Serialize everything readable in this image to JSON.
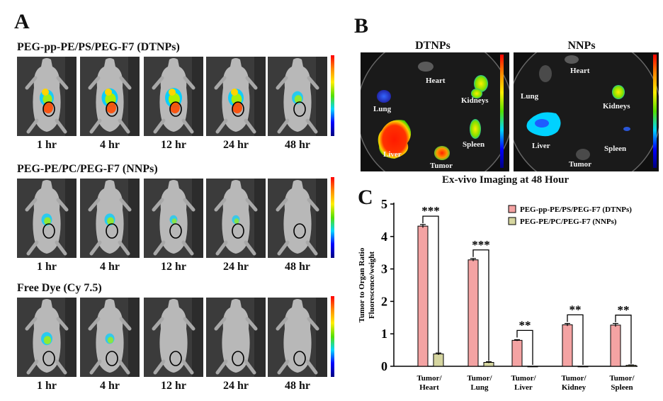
{
  "panel_a": {
    "letter": "A",
    "rows": [
      {
        "title": "PEG-pp-PE/PS/PEG-F7 (DTNPs)",
        "times": [
          "1 hr",
          "4 hr",
          "12 hr",
          "24 hr",
          "48 hr"
        ],
        "signal": [
          0.8,
          0.95,
          1.0,
          0.9,
          0.6
        ]
      },
      {
        "title": "PEG-PE/PC/PEG-F7 (NNPs)",
        "times": [
          "1 hr",
          "4 hr",
          "12 hr",
          "24 hr",
          "48 hr"
        ],
        "signal": [
          0.55,
          0.55,
          0.35,
          0.35,
          0.0
        ]
      },
      {
        "title": "Free Dye (Cy 7.5)",
        "times": [
          "1 hr",
          "4 hr",
          "12 hr",
          "24 hr",
          "48 hr"
        ],
        "signal": [
          0.6,
          0.45,
          0.0,
          0.0,
          0.0
        ]
      }
    ]
  },
  "panel_b": {
    "letter": "B",
    "dtnps": {
      "title": "DTNPs",
      "labels": {
        "heart": "Heart",
        "lung": "Lung",
        "kidneys": "Kidneys",
        "liver": "Liver",
        "spleen": "Spleen",
        "tumor": "Tumor"
      }
    },
    "nnps": {
      "title": "NNPs",
      "labels": {
        "heart": "Heart",
        "lung": "Lung",
        "kidneys": "Kidneys",
        "liver": "Liver",
        "spleen": "Spleen",
        "tumor": "Tumor"
      }
    },
    "caption": "Ex-vivo Imaging at 48 Hour"
  },
  "chart_data": {
    "type": "bar",
    "letter": "C",
    "ylabel_line1": "Tumor to Organ Ratio",
    "ylabel_line2": "Fluorescence/weight",
    "categories": [
      [
        "Tumor/",
        "Heart"
      ],
      [
        "Tumor/",
        "Lung"
      ],
      [
        "Tumor/",
        "Liver"
      ],
      [
        "Tumor/",
        "Kidney"
      ],
      [
        "Tumor/",
        "Spleen"
      ]
    ],
    "series": [
      {
        "name": "PEG-pp-PE/PS/PEG-F7 (DTNPs)",
        "color": "#f4a3a3",
        "values": [
          4.32,
          3.28,
          0.8,
          1.28,
          1.27
        ],
        "errors": [
          0.05,
          0.04,
          0.02,
          0.04,
          0.05
        ]
      },
      {
        "name": "PEG-PE/PC/PEG-F7 (NNPs)",
        "color": "#d6d6a0",
        "values": [
          0.38,
          0.12,
          0.0,
          0.0,
          0.03
        ],
        "errors": [
          0.03,
          0.02,
          0.0,
          0.0,
          0.01
        ]
      }
    ],
    "significance": [
      "***",
      "***",
      "**",
      "**",
      "**"
    ],
    "ylim": [
      0,
      5
    ],
    "yticks": [
      0,
      1,
      2,
      3,
      4,
      5
    ],
    "legend_position": "top-right"
  }
}
